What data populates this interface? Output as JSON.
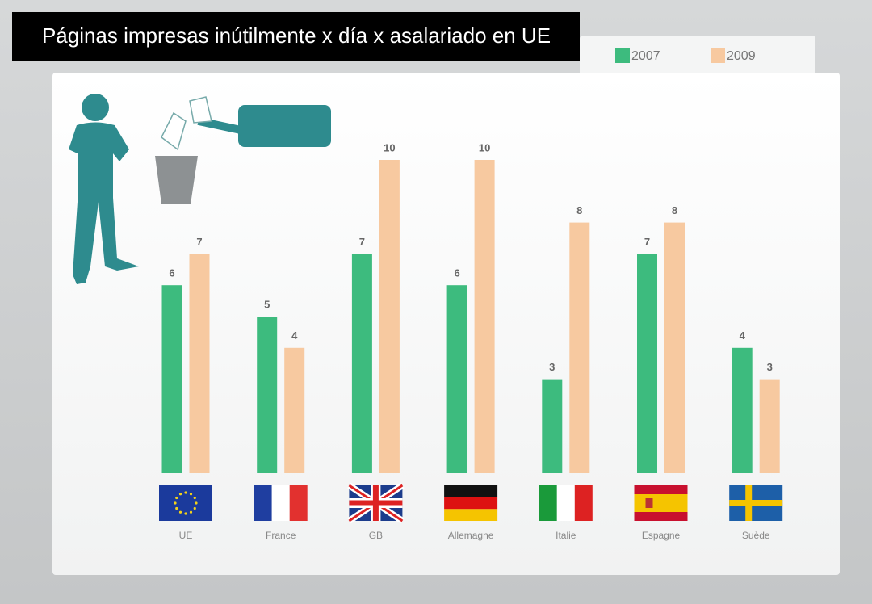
{
  "chart_data": {
    "type": "bar",
    "title": "Páginas impresas inútilmente  x día x asalariado en UE",
    "categories": [
      "UE",
      "France",
      "GB",
      "Allemagne",
      "Italie",
      "Espagne",
      "Suède"
    ],
    "series": [
      {
        "name": "2007",
        "color": "#3dbb7e",
        "values": [
          6,
          5,
          7,
          6,
          3,
          7,
          4
        ]
      },
      {
        "name": "2009",
        "color": "#f7c9a0",
        "values": [
          7,
          4,
          10,
          10,
          8,
          8,
          3
        ]
      }
    ],
    "ylim": [
      0,
      10
    ]
  }
}
